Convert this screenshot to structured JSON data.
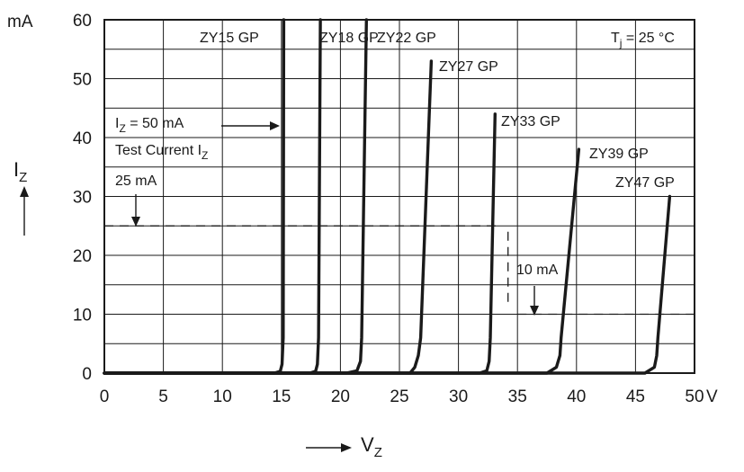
{
  "chart_data": {
    "type": "line",
    "title": "",
    "xlabel_main": "V",
    "xlabel_sub": "Z",
    "ylabel_main": "I",
    "ylabel_sub": "Z",
    "x_unit": "V",
    "y_unit": "mA",
    "xlim": [
      0,
      50
    ],
    "ylim": [
      0,
      60
    ],
    "x_ticks": [
      "0",
      "5",
      "10",
      "15",
      "20",
      "25",
      "30",
      "35",
      "40",
      "45",
      "50"
    ],
    "y_ticks": [
      "0",
      "10",
      "20",
      "30",
      "40",
      "50",
      "60"
    ],
    "x_grid_step": 5,
    "y_grid_step": 5,
    "grid": true,
    "series": [
      {
        "name": "ZY15 GP",
        "points": [
          [
            0,
            0
          ],
          [
            14.4,
            0
          ],
          [
            14.9,
            0.3
          ],
          [
            15.05,
            1.5
          ],
          [
            15.15,
            6
          ],
          [
            15.2,
            60
          ]
        ]
      },
      {
        "name": "ZY18 GP",
        "points": [
          [
            0,
            0
          ],
          [
            17.4,
            0
          ],
          [
            17.9,
            0.3
          ],
          [
            18.05,
            1.5
          ],
          [
            18.15,
            6
          ],
          [
            18.3,
            60
          ]
        ]
      },
      {
        "name": "ZY22 GP",
        "points": [
          [
            0,
            0
          ],
          [
            20.5,
            0
          ],
          [
            21.4,
            0.4
          ],
          [
            21.7,
            2
          ],
          [
            21.8,
            6
          ],
          [
            22.2,
            60
          ]
        ]
      },
      {
        "name": "ZY27 GP",
        "points": [
          [
            0,
            0
          ],
          [
            25.9,
            0
          ],
          [
            26.3,
            1
          ],
          [
            26.6,
            3
          ],
          [
            26.8,
            6
          ],
          [
            27.7,
            53
          ]
        ]
      },
      {
        "name": "ZY33 GP",
        "points": [
          [
            0,
            0
          ],
          [
            31.8,
            0
          ],
          [
            32.4,
            0.4
          ],
          [
            32.6,
            2
          ],
          [
            32.7,
            6
          ],
          [
            33.1,
            44
          ]
        ]
      },
      {
        "name": "ZY39 GP",
        "points": [
          [
            0,
            0
          ],
          [
            37.5,
            0
          ],
          [
            38.3,
            1
          ],
          [
            38.6,
            3
          ],
          [
            38.7,
            6
          ],
          [
            40.2,
            38
          ]
        ]
      },
      {
        "name": "ZY47 GP",
        "points": [
          [
            0,
            0
          ],
          [
            45.8,
            0
          ],
          [
            46.6,
            1
          ],
          [
            46.8,
            3
          ],
          [
            46.9,
            6
          ],
          [
            47.9,
            30
          ]
        ]
      }
    ],
    "series_labels": [
      "ZY15 GP",
      "ZY18 GP",
      "ZY22 GP",
      "ZY27 GP",
      "ZY33 GP",
      "ZY39 GP",
      "ZY47 GP"
    ],
    "annotations": {
      "temperature_main": "T",
      "temperature_sub": "j",
      "temperature_rest": " = 25 °C",
      "test_current_50_main": "I",
      "test_current_50_sub": "Z",
      "test_current_50_rest": " = 50 mA",
      "test_current_text_main": "Test Current I",
      "test_current_text_sub": "Z",
      "marker_25": "25 mA",
      "marker_10": "10 mA"
    },
    "reference_lines": [
      {
        "value_mA": 25,
        "style": "dashed",
        "from_V": 0,
        "to_V": 33.5
      },
      {
        "value_mA": 10,
        "style": "dashed",
        "from_V": 35,
        "to_V": 50
      }
    ]
  }
}
